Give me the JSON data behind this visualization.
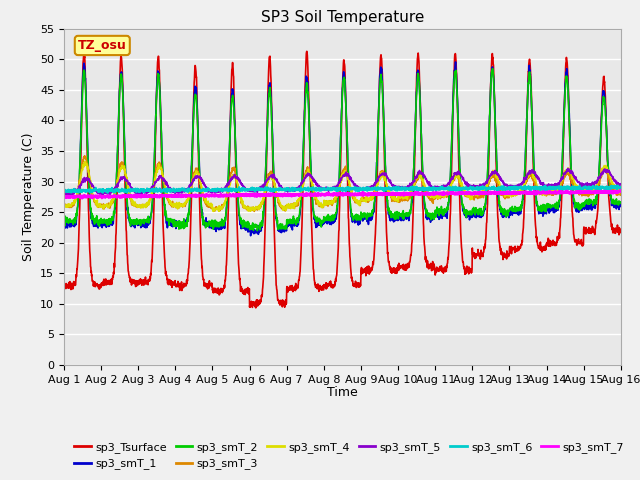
{
  "title": "SP3 Soil Temperature",
  "ylabel": "Soil Temperature (C)",
  "xlabel": "Time",
  "ylim": [
    0,
    55
  ],
  "yticks": [
    0,
    5,
    10,
    15,
    20,
    25,
    30,
    35,
    40,
    45,
    50,
    55
  ],
  "n_days": 15,
  "pts_per_day": 144,
  "series_colors": {
    "sp3_Tsurface": "#dd0000",
    "sp3_smT_1": "#0000cc",
    "sp3_smT_2": "#00cc00",
    "sp3_smT_3": "#dd8800",
    "sp3_smT_4": "#dddd00",
    "sp3_smT_5": "#8800cc",
    "sp3_smT_6": "#00cccc",
    "sp3_smT_7": "#ff00ff"
  },
  "series_lw": {
    "sp3_Tsurface": 1.2,
    "sp3_smT_1": 1.2,
    "sp3_smT_2": 1.2,
    "sp3_smT_3": 1.2,
    "sp3_smT_4": 1.2,
    "sp3_smT_5": 1.2,
    "sp3_smT_6": 1.5,
    "sp3_smT_7": 2.0
  },
  "series_order": [
    "sp3_Tsurface",
    "sp3_smT_1",
    "sp3_smT_2",
    "sp3_smT_3",
    "sp3_smT_4",
    "sp3_smT_5",
    "sp3_smT_6",
    "sp3_smT_7"
  ],
  "tz_label": "TZ_osu",
  "tz_bg": "#ffff99",
  "tz_border": "#cc8800",
  "fig_facecolor": "#f0f0f0",
  "axes_facecolor": "#e8e8e8",
  "title_fontsize": 11,
  "axis_label_fontsize": 9,
  "tick_fontsize": 8,
  "legend_fontsize": 8,
  "grid_color": "#ffffff",
  "grid_lw": 1.0
}
